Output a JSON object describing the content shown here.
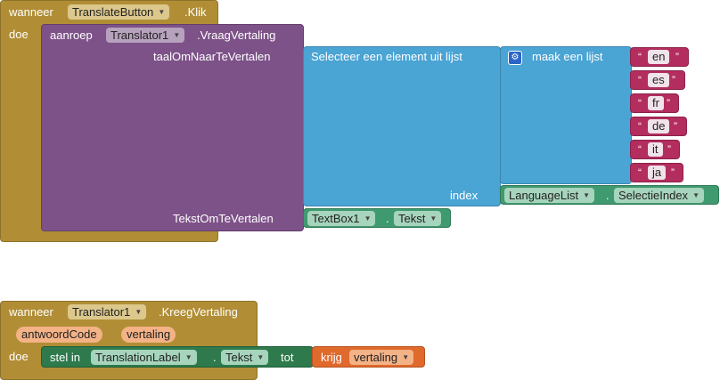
{
  "block1": {
    "event_keyword": "wanneer",
    "component": "TranslateButton",
    "event_name": ".Klik",
    "do_label": "doe",
    "call_keyword": "aanroep",
    "call_component": "Translator1",
    "method": ".VraagVertaling",
    "param1_label": "taalOmNaarTeVertalen",
    "param2_label": "TekstOmTeVertalen",
    "select_label": "Selecteer een element uit lijst",
    "make_list_label": "maak een lijst",
    "index_label": "index",
    "list_items": [
      "en",
      "es",
      "fr",
      "de",
      "it",
      "ja"
    ],
    "quote_open": "“",
    "quote_close": "”",
    "index_component": "LanguageList",
    "index_property": "SelectieIndex",
    "dot": ".",
    "text_component": "TextBox1",
    "text_property": "Tekst"
  },
  "block2": {
    "event_keyword": "wanneer",
    "component": "Translator1",
    "event_name": ".KreegVertaling",
    "params": [
      "antwoordCode",
      "vertaling"
    ],
    "do_label": "doe",
    "set_keyword": "stel in",
    "set_component": "TranslationLabel",
    "set_property": "Tekst",
    "to_label": "tot",
    "get_keyword": "krijg",
    "get_variable": "vertaling",
    "dot": "."
  },
  "colors": {
    "event": "#b18e35",
    "procedure": "#7d5288",
    "list": "#4aa4d4",
    "text": "#b32d5e",
    "component": "#3f9a70",
    "setter": "#2e7a4d",
    "variable": "#e0692c"
  },
  "icons": {
    "dropdown": "chevron-down-icon",
    "mutator": "gear-icon"
  }
}
